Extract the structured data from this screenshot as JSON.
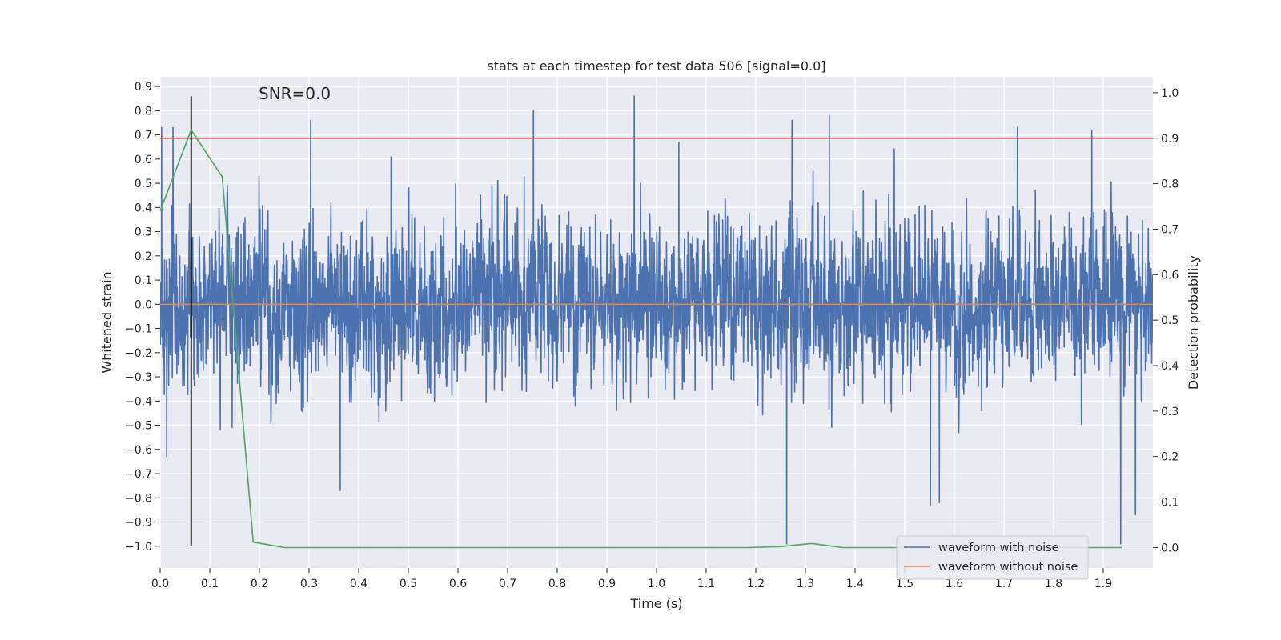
{
  "chart_data": {
    "type": "line",
    "title": "stats at each timestep for test data 506 [signal=0.0]",
    "xlabel": "Time (s)",
    "ylabel": "Whitened strain",
    "ylabel_right": "Detection probability",
    "xlim": [
      0.0,
      2.0
    ],
    "ylim": [
      -1.09,
      0.94
    ],
    "ylim_right": [
      -0.045,
      1.035
    ],
    "x_ticks": [
      "0.0",
      "0.1",
      "0.2",
      "0.3",
      "0.4",
      "0.5",
      "0.6",
      "0.7",
      "0.8",
      "0.9",
      "1.0",
      "1.1",
      "1.2",
      "1.3",
      "1.4",
      "1.5",
      "1.6",
      "1.7",
      "1.8",
      "1.9"
    ],
    "y_ticks": [
      "0.9",
      "0.8",
      "0.7",
      "0.6",
      "0.5",
      "0.4",
      "0.3",
      "0.2",
      "0.1",
      "0.0",
      "−0.1",
      "−0.2",
      "−0.3",
      "−0.4",
      "−0.5",
      "−0.6",
      "−0.7",
      "−0.8",
      "−0.9",
      "−1.0"
    ],
    "y_right_ticks": [
      "1.0",
      "0.9",
      "0.8",
      "0.7",
      "0.6",
      "0.5",
      "0.4",
      "0.3",
      "0.2",
      "0.1",
      "0.0"
    ],
    "annotation": "SNR=0.0",
    "grid": true,
    "legend_position": "lower-right",
    "series": [
      {
        "name": "waveform with noise",
        "color": "#4c72b0",
        "style": "dense-noise",
        "std": 0.28,
        "sample_rate": 2048,
        "spikes": [
          {
            "t": 0.003,
            "v": 0.73
          },
          {
            "t": 0.013,
            "v": -0.63
          },
          {
            "t": 0.026,
            "v": 0.73
          },
          {
            "t": 0.303,
            "v": 0.76
          },
          {
            "t": 0.363,
            "v": -0.77
          },
          {
            "t": 0.752,
            "v": 0.8
          },
          {
            "t": 0.955,
            "v": 0.86
          },
          {
            "t": 1.045,
            "v": 0.67
          },
          {
            "t": 1.262,
            "v": -0.99
          },
          {
            "t": 1.273,
            "v": 0.76
          },
          {
            "t": 1.348,
            "v": 0.78
          },
          {
            "t": 1.552,
            "v": -0.83
          },
          {
            "t": 1.57,
            "v": -0.82
          },
          {
            "t": 1.727,
            "v": 0.73
          },
          {
            "t": 1.877,
            "v": 0.72
          },
          {
            "t": 1.935,
            "v": -0.99
          },
          {
            "t": 1.965,
            "v": -0.87
          }
        ]
      },
      {
        "name": "waveform without noise",
        "color": "#dd8452",
        "axis": "left",
        "x": [
          0.0,
          2.0
        ],
        "y": [
          0.0,
          0.0
        ]
      },
      {
        "name": "detection probability",
        "color": "#55a868",
        "axis": "right",
        "x": [
          0.0,
          0.0625,
          0.125,
          0.1875,
          0.25,
          0.3125,
          0.375,
          0.4375,
          0.5,
          0.5625,
          0.625,
          0.6875,
          0.75,
          0.8125,
          0.875,
          0.9375,
          1.0,
          1.0625,
          1.125,
          1.1875,
          1.25,
          1.3125,
          1.375,
          1.4375,
          1.5,
          1.5625,
          1.625,
          1.6875,
          1.75,
          1.8125,
          1.875,
          1.9375
        ],
        "y": [
          0.74,
          0.918,
          0.815,
          0.012,
          0.0,
          0.0,
          0.0,
          0.0,
          0.0,
          0.0,
          0.0,
          0.0,
          0.0,
          0.0,
          0.0,
          0.0,
          0.0,
          0.0,
          0.0,
          0.0,
          0.002,
          0.009,
          0.0,
          0.0,
          0.0,
          0.0,
          0.0,
          0.0,
          0.0,
          0.0,
          0.0,
          0.0
        ]
      },
      {
        "name": "threshold",
        "color": "#c44e52",
        "axis": "right",
        "x": [
          0.0,
          2.0
        ],
        "y": [
          0.9,
          0.9
        ]
      },
      {
        "name": "peak marker",
        "color": "#000000",
        "axis": "left",
        "x": [
          0.0625,
          0.0625
        ],
        "y": [
          -1.0,
          0.86
        ]
      }
    ],
    "legend": [
      "waveform with noise",
      "waveform without noise"
    ]
  }
}
